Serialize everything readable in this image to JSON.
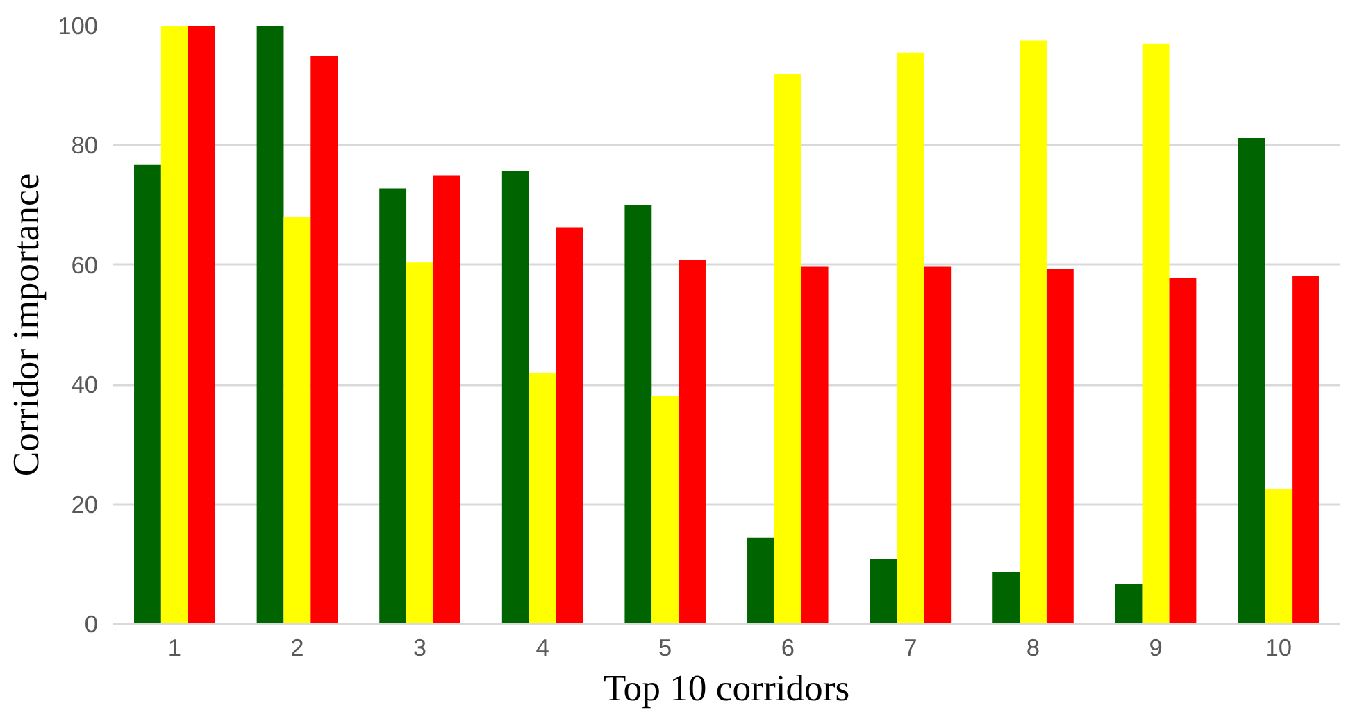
{
  "chart_data": {
    "type": "bar",
    "xlabel": "Top 10 corridors",
    "ylabel": "Corridor importance",
    "categories": [
      "1",
      "2",
      "3",
      "4",
      "5",
      "6",
      "7",
      "8",
      "9",
      "10"
    ],
    "series": [
      {
        "color": "#006400",
        "values": [
          76.7,
          100,
          72.8,
          75.7,
          70,
          14.4,
          10.9,
          8.7,
          6.7,
          81.2
        ]
      },
      {
        "color": "#ffff00",
        "values": [
          100,
          68,
          60.4,
          42,
          38.1,
          92,
          95.5,
          97.5,
          97,
          22.5
        ]
      },
      {
        "color": "#ff0000",
        "values": [
          100,
          95,
          75,
          66.3,
          60.9,
          59.7,
          59.7,
          59.4,
          57.9,
          58.2
        ]
      }
    ],
    "ylim": [
      0,
      100
    ],
    "yticks": [
      0,
      20,
      40,
      60,
      80,
      100
    ],
    "grid": "y"
  }
}
